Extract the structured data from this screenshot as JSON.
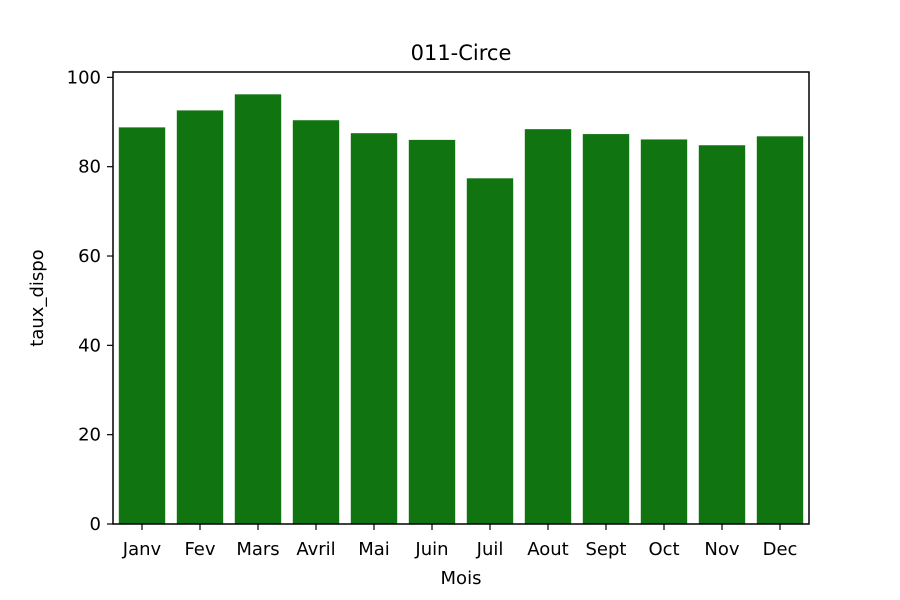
{
  "chart_data": {
    "type": "bar",
    "title": "011-Circe",
    "xlabel": "Mois",
    "ylabel": "taux_dispo",
    "categories": [
      "Janv",
      "Fev",
      "Mars",
      "Avril",
      "Mai",
      "Juin",
      "Juil",
      "Aout",
      "Sept",
      "Oct",
      "Nov",
      "Dec"
    ],
    "values": [
      88.8,
      92.6,
      96.2,
      90.4,
      87.5,
      86.0,
      77.4,
      88.4,
      87.3,
      86.1,
      84.8,
      86.8
    ],
    "ylim": [
      0,
      101.2
    ],
    "yticks": [
      0,
      20,
      40,
      60,
      80,
      100
    ],
    "bar_color": "#107410",
    "grid": false,
    "legend": "none"
  }
}
